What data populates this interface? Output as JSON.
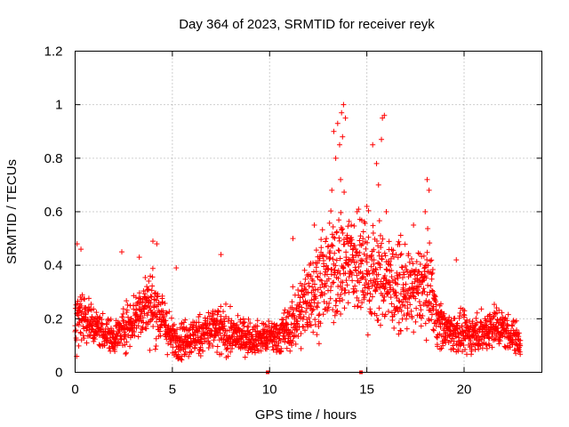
{
  "chart_data": {
    "type": "scatter",
    "title": "Day 364 of 2023, SRMTID for receiver reyk",
    "xlabel": "GPS time / hours",
    "ylabel": "SRMTID / TECUs",
    "xlim": [
      0,
      24
    ],
    "ylim": [
      0,
      1.2
    ],
    "x_ticks": [
      0,
      5,
      10,
      15,
      20
    ],
    "x_tick_labels": [
      "0",
      "5",
      "10",
      "15",
      "20"
    ],
    "y_ticks": [
      0,
      0.2,
      0.4,
      0.6,
      0.8,
      1.0,
      1.2
    ],
    "y_tick_labels": [
      "0",
      "0.2",
      "0.4",
      "0.6",
      "0.8",
      "1",
      "1.2"
    ],
    "grid": true,
    "marker": "plus",
    "color": "#ff0000",
    "data_span_hours": [
      0,
      22.9
    ],
    "profile": {
      "x": [
        0,
        0.3,
        1,
        2,
        3,
        3.5,
        4,
        4.5,
        5,
        6,
        7,
        7.5,
        8,
        9,
        10,
        10.5,
        11,
        11.5,
        12,
        12.5,
        13,
        13.5,
        14,
        14.5,
        15,
        15.5,
        16,
        16.5,
        17,
        17.5,
        18,
        18.3,
        18.6,
        19,
        20,
        21,
        21.5,
        22,
        22.9
      ],
      "median": [
        0.2,
        0.23,
        0.17,
        0.13,
        0.2,
        0.25,
        0.25,
        0.2,
        0.12,
        0.13,
        0.16,
        0.15,
        0.14,
        0.13,
        0.13,
        0.14,
        0.16,
        0.22,
        0.28,
        0.33,
        0.36,
        0.4,
        0.42,
        0.4,
        0.38,
        0.36,
        0.35,
        0.32,
        0.3,
        0.3,
        0.33,
        0.32,
        0.2,
        0.16,
        0.14,
        0.15,
        0.18,
        0.16,
        0.12
      ],
      "spread": [
        0.07,
        0.08,
        0.05,
        0.04,
        0.07,
        0.08,
        0.09,
        0.07,
        0.05,
        0.05,
        0.06,
        0.07,
        0.05,
        0.04,
        0.04,
        0.05,
        0.06,
        0.09,
        0.1,
        0.12,
        0.13,
        0.15,
        0.15,
        0.14,
        0.14,
        0.13,
        0.12,
        0.11,
        0.1,
        0.1,
        0.11,
        0.1,
        0.07,
        0.05,
        0.05,
        0.05,
        0.06,
        0.05,
        0.04
      ]
    },
    "highlights": [
      {
        "x": 13.3,
        "y": 0.9
      },
      {
        "x": 13.5,
        "y": 0.93
      },
      {
        "x": 13.7,
        "y": 0.97
      },
      {
        "x": 13.8,
        "y": 1.0
      },
      {
        "x": 13.9,
        "y": 0.95
      },
      {
        "x": 13.75,
        "y": 0.88
      },
      {
        "x": 13.6,
        "y": 0.85
      },
      {
        "x": 13.4,
        "y": 0.8
      },
      {
        "x": 13.2,
        "y": 0.68
      },
      {
        "x": 13.65,
        "y": 0.72
      },
      {
        "x": 14.2,
        "y": 0.55
      },
      {
        "x": 14.5,
        "y": 0.6
      },
      {
        "x": 15.0,
        "y": 0.62
      },
      {
        "x": 15.3,
        "y": 0.85
      },
      {
        "x": 15.5,
        "y": 0.78
      },
      {
        "x": 15.75,
        "y": 0.87
      },
      {
        "x": 15.8,
        "y": 0.95
      },
      {
        "x": 15.9,
        "y": 0.96
      },
      {
        "x": 15.6,
        "y": 0.7
      },
      {
        "x": 16.0,
        "y": 0.6
      },
      {
        "x": 14.8,
        "y": 0.5
      },
      {
        "x": 18.1,
        "y": 0.72
      },
      {
        "x": 18.2,
        "y": 0.68
      },
      {
        "x": 18.0,
        "y": 0.6
      },
      {
        "x": 17.4,
        "y": 0.55
      },
      {
        "x": 11.2,
        "y": 0.5
      },
      {
        "x": 12.3,
        "y": 0.55
      },
      {
        "x": 0.1,
        "y": 0.48
      },
      {
        "x": 0.3,
        "y": 0.46
      },
      {
        "x": 4.0,
        "y": 0.49
      },
      {
        "x": 4.2,
        "y": 0.48
      },
      {
        "x": 2.4,
        "y": 0.45
      },
      {
        "x": 7.5,
        "y": 0.44
      },
      {
        "x": 3.3,
        "y": 0.43
      },
      {
        "x": 5.2,
        "y": 0.39
      },
      {
        "x": 19.6,
        "y": 0.42
      }
    ],
    "zero_markers": [
      9.9,
      14.7
    ]
  }
}
